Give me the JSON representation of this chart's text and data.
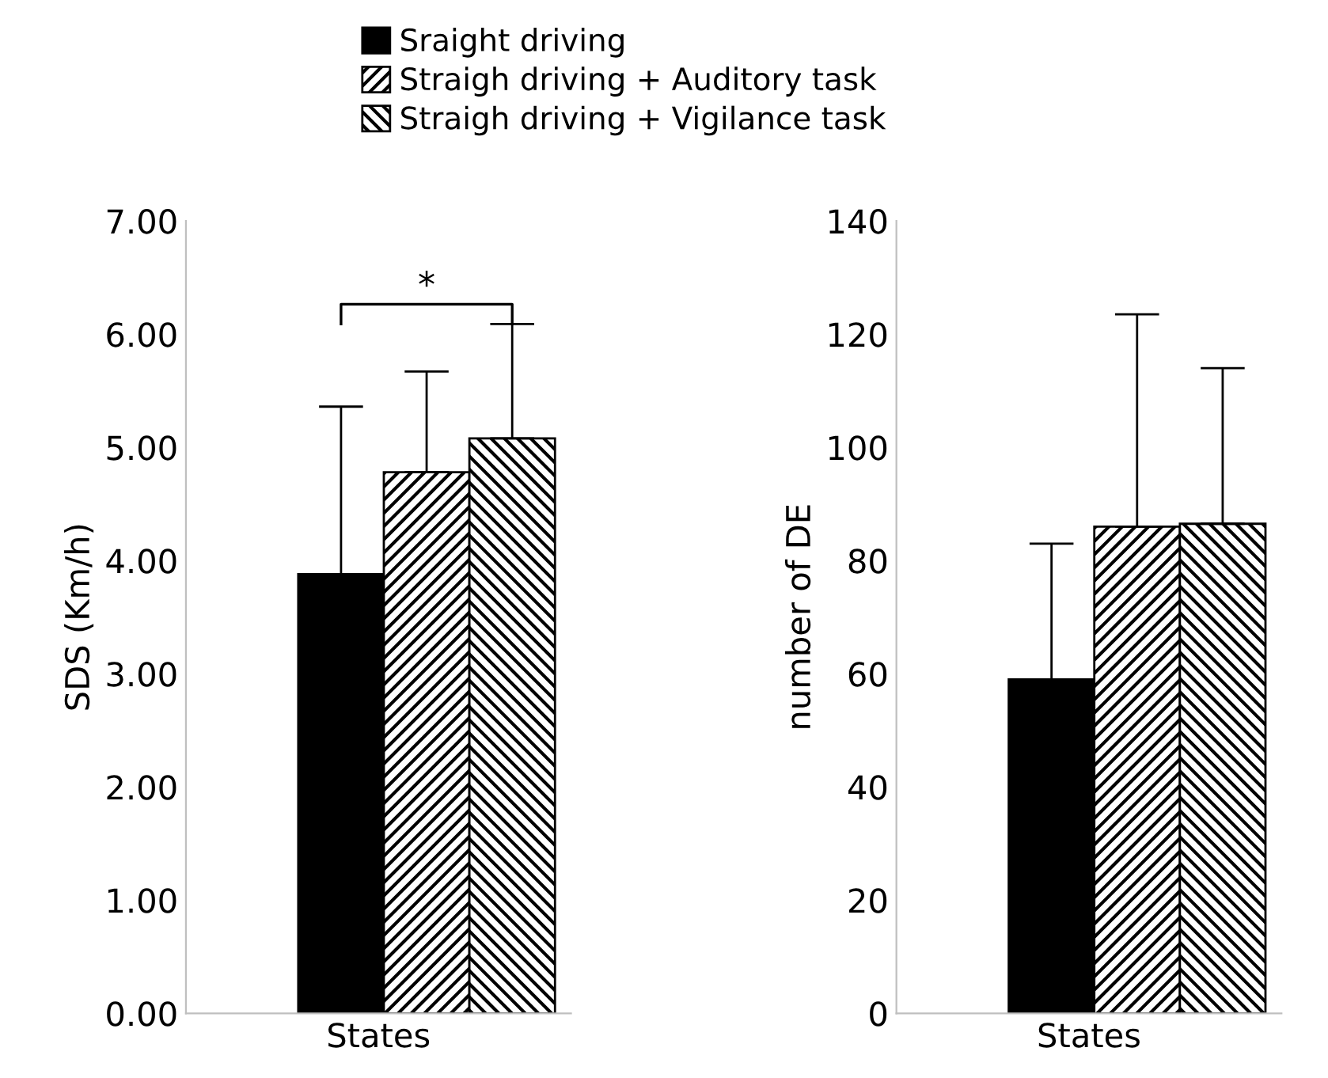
{
  "chart_data": [
    {
      "type": "bar",
      "categories": [
        null
      ],
      "xlabel": "States",
      "ylabel": "SDS (Km/h)",
      "ylim": [
        0,
        7
      ],
      "yticks": [
        {
          "value": 0,
          "label": "0.00"
        },
        {
          "value": 1,
          "label": "1.00"
        },
        {
          "value": 2,
          "label": "2.00"
        },
        {
          "value": 3,
          "label": "3.00"
        },
        {
          "value": 4,
          "label": "4.00"
        },
        {
          "value": 5,
          "label": "5.00"
        },
        {
          "value": 6,
          "label": "6.00"
        },
        {
          "value": 7,
          "label": "7.00"
        }
      ],
      "grid": false,
      "legend": "top",
      "annotations": [
        "*"
      ],
      "series": [
        {
          "name": "Sraight driving",
          "color": "#000000",
          "values": [
            3.88
          ],
          "errors": [
            [
              3.88,
              5.36
            ]
          ]
        },
        {
          "name": "Straigh driving + Auditory task",
          "color": "#000000",
          "values": [
            4.78
          ],
          "errors": [
            [
              4.78,
              5.67
            ]
          ]
        },
        {
          "name": "Straigh driving + Vigilance task",
          "color": "#000000",
          "values": [
            5.08
          ],
          "errors": [
            [
              5.08,
              6.09
            ]
          ]
        }
      ]
    },
    {
      "type": "bar",
      "categories": [
        null
      ],
      "xlabel": "States",
      "ylabel": "number of DE",
      "ylim": [
        0,
        140
      ],
      "yticks": [
        0,
        20,
        40,
        60,
        80,
        100,
        120,
        140
      ],
      "grid": false,
      "series": [
        {
          "color": "#000000",
          "values": [
            59
          ],
          "errors": [
            [
              59,
              83
            ]
          ]
        },
        {
          "color": "#000000",
          "values": [
            86
          ],
          "errors": [
            [
              86,
              123.5
            ]
          ]
        },
        {
          "color": "#000000",
          "values": [
            86.5
          ],
          "errors": [
            [
              86.5,
              114
            ]
          ]
        }
      ]
    }
  ]
}
